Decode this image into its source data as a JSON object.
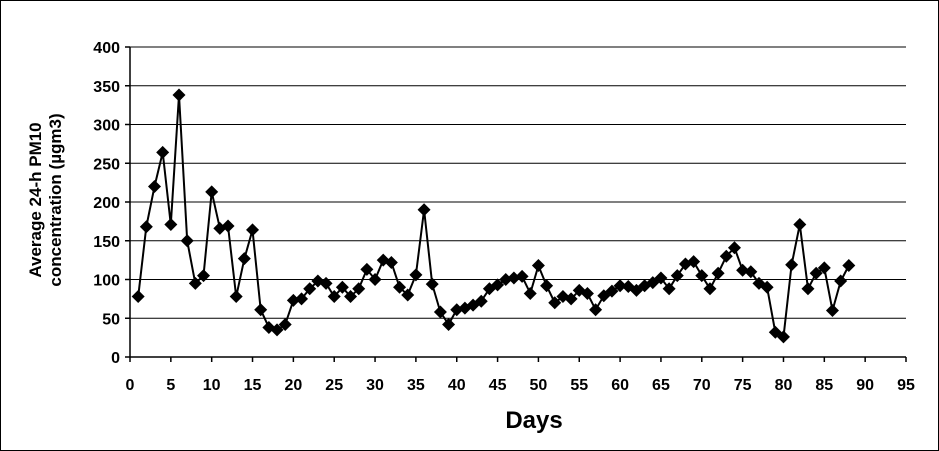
{
  "chart_data": {
    "type": "line",
    "title": "",
    "xlabel": "Days",
    "ylabel_line1": "Average 24-h PM10",
    "ylabel_line2": "concentration (µgm3)",
    "xlim": [
      0,
      95
    ],
    "ylim": [
      0,
      400
    ],
    "xticks": [
      0,
      5,
      10,
      15,
      20,
      25,
      30,
      35,
      40,
      45,
      50,
      55,
      60,
      65,
      70,
      75,
      80,
      85,
      90,
      95
    ],
    "yticks": [
      0,
      50,
      100,
      150,
      200,
      250,
      300,
      350,
      400
    ],
    "grid": "horizontal",
    "legend": "none",
    "marker": "diamond",
    "series": [
      {
        "color": "#000000",
        "x": [
          1,
          2,
          3,
          4,
          5,
          6,
          7,
          8,
          9,
          10,
          11,
          12,
          13,
          14,
          15,
          16,
          17,
          18,
          19,
          20,
          21,
          22,
          23,
          24,
          25,
          26,
          27,
          28,
          29,
          30,
          31,
          32,
          33,
          34,
          35,
          36,
          37,
          38,
          39,
          40,
          41,
          42,
          43,
          44,
          45,
          46,
          47,
          48,
          49,
          50,
          51,
          52,
          53,
          54,
          55,
          56,
          57,
          58,
          59,
          60,
          61,
          62,
          63,
          64,
          65,
          66,
          67,
          68,
          69,
          70,
          71,
          72,
          73,
          74,
          75,
          76,
          77,
          78,
          79,
          80,
          81,
          82,
          83,
          84,
          85,
          86,
          87,
          88
        ],
        "y": [
          78,
          168,
          220,
          264,
          171,
          338,
          150,
          95,
          105,
          213,
          166,
          169,
          78,
          127,
          164,
          61,
          38,
          35,
          42,
          73,
          75,
          88,
          98,
          95,
          78,
          90,
          78,
          88,
          113,
          100,
          125,
          122,
          90,
          80,
          106,
          190,
          94,
          58,
          42,
          61,
          63,
          67,
          72,
          88,
          93,
          100,
          102,
          104,
          82,
          118,
          92,
          70,
          78,
          75,
          86,
          82,
          61,
          79,
          85,
          92,
          91,
          86,
          92,
          96,
          102,
          88,
          105,
          120,
          123,
          105,
          88,
          108,
          130,
          141,
          112,
          110,
          95,
          90,
          32,
          26,
          119,
          171,
          88,
          108,
          115,
          60,
          98,
          118
        ]
      }
    ]
  }
}
